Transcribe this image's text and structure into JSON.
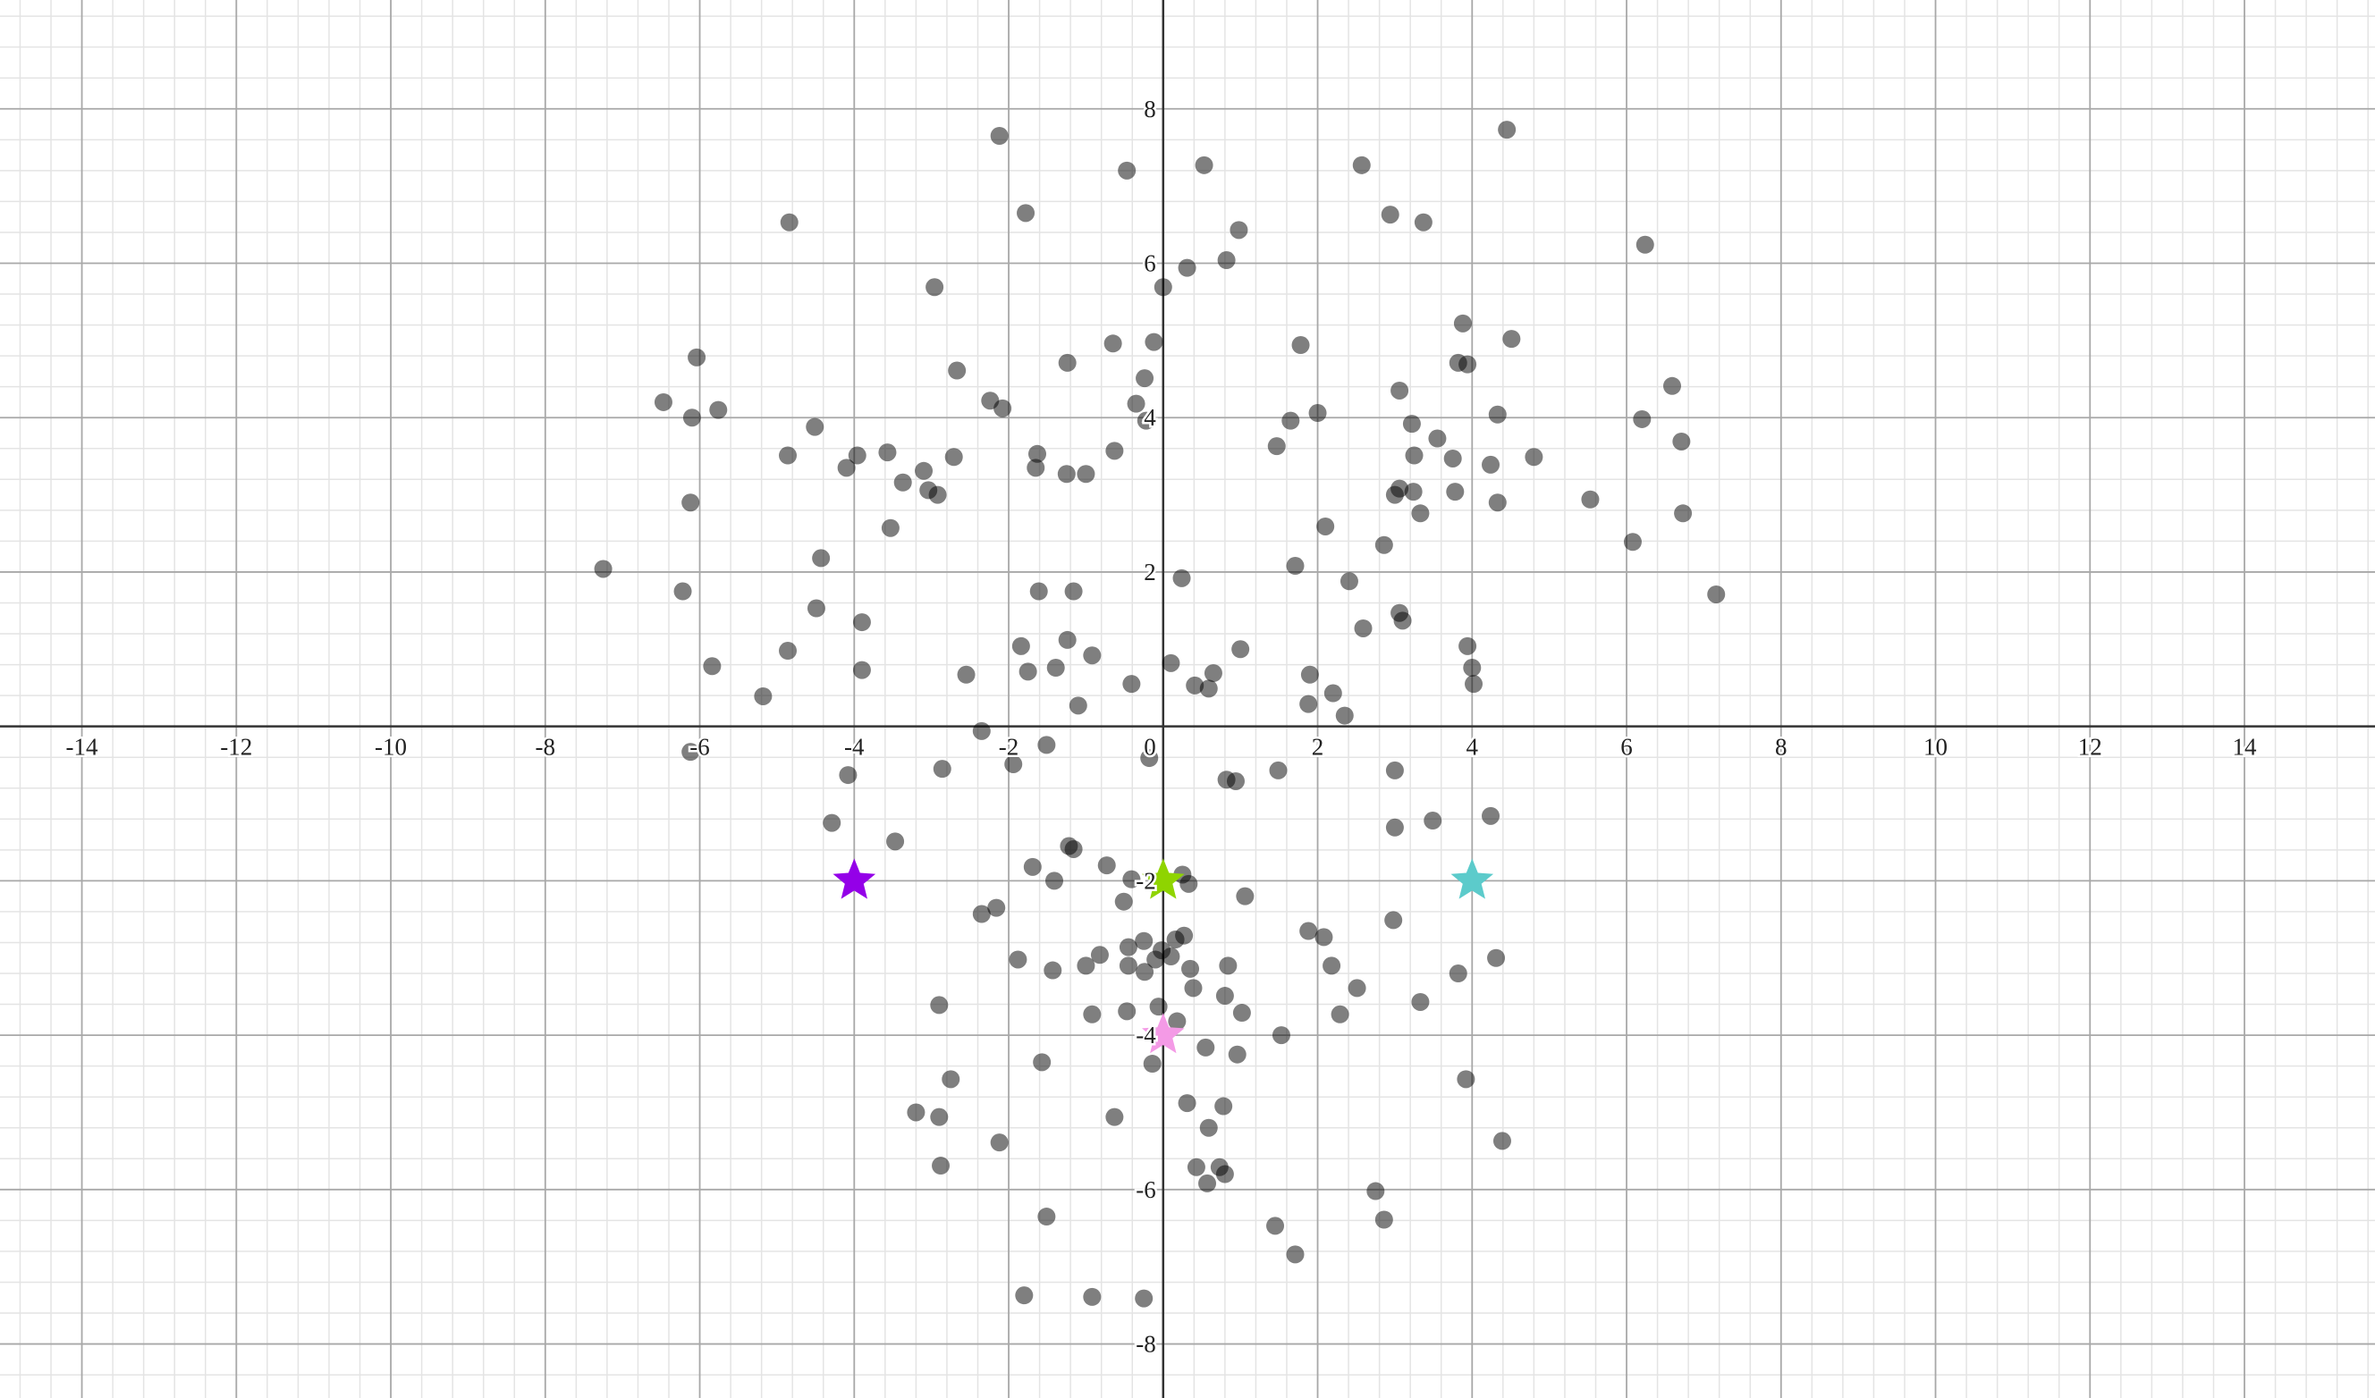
{
  "chart_data": {
    "type": "scatter",
    "xlim": [
      -15.06,
      15.69
    ],
    "ylim": [
      -8.7,
      9.41
    ],
    "xticks": [
      -14,
      -12,
      -10,
      -8,
      -6,
      -4,
      -2,
      0,
      2,
      4,
      6,
      8,
      10,
      12,
      14
    ],
    "yticks": [
      -8,
      -6,
      -4,
      -2,
      2,
      4,
      6,
      8
    ],
    "grid": true,
    "series": [
      {
        "color": "rgba(0,0,0,0.5)",
        "marker": "circle",
        "x": [
          4.45,
          -2.12,
          -0.47,
          0.53,
          2.57,
          -4.84,
          -1.78,
          2.94,
          3.37,
          0.98,
          6.24,
          0.82,
          0.31,
          -2.96,
          0,
          3.88,
          4.51,
          -0.65,
          -0.12,
          1.78,
          -6.04,
          -2.67,
          -1.24,
          3.82,
          3.94,
          -0.24,
          6.59,
          3.06,
          -6.47,
          -5.76,
          -6.1,
          -2.24,
          -2.08,
          -0.35,
          -0.22,
          2.0,
          1.65,
          3.22,
          4.33,
          6.2,
          -4.51,
          3.55,
          6.71,
          -4.86,
          -3.96,
          -3.57,
          -2.71,
          -1.63,
          -0.63,
          1.47,
          3.25,
          3.75,
          4.8,
          -4.1,
          -3.1,
          -1.65,
          -1.25,
          -1.0,
          4.24,
          -3.37,
          -3.04,
          -2.92,
          3.0,
          3.06,
          3.24,
          3.78,
          5.53,
          -6.12,
          4.33,
          3.33,
          6.73,
          -3.53,
          2.1,
          6.08,
          2.86,
          -4.43,
          -7.25,
          1.71,
          0.24,
          2.41,
          -6.22,
          -1.61,
          -1.16,
          7.16,
          -4.49,
          3.06,
          3.1,
          -3.9,
          2.59,
          -1.24,
          -1.84,
          3.94,
          1.0,
          -4.86,
          -0.92,
          0.1,
          -5.84,
          -3.9,
          -1.39,
          -1.75,
          -2.55,
          4.0,
          1.9,
          0.65,
          0.41,
          -0.41,
          0.59,
          4.02,
          2.2,
          -5.18,
          -1.1,
          1.88,
          2.35,
          -2.35,
          -6.12,
          -1.51,
          -0.18,
          -1.94,
          -2.86,
          1.49,
          3.0,
          -4.08,
          0.82,
          0.94,
          4.24,
          3.49,
          -4.29,
          3.0,
          -3.47,
          -1.22,
          -1.16,
          -0.73,
          -1.69,
          0.25,
          -0.41,
          -1.41,
          0.33,
          1.06,
          -0.51,
          -2.16,
          -2.35,
          2.98,
          1.88,
          2.08,
          0.27,
          0.16,
          -0.25,
          -0.45,
          -0.02,
          0.1,
          -0.1,
          -0.82,
          -1.88,
          -1.0,
          -0.45,
          -0.24,
          0.35,
          0.84,
          2.18,
          4.31,
          -1.43,
          3.82,
          0.39,
          2.51,
          0.8,
          3.33,
          -2.9,
          -0.06,
          -0.47,
          -0.92,
          1.02,
          2.29,
          0.18,
          1.53,
          0.55,
          0.96,
          -1.57,
          -0.14,
          -2.75,
          3.92,
          0.31,
          0.78,
          -3.2,
          -2.9,
          -0.63,
          0.59,
          -2.12,
          4.39,
          -2.88,
          0.43,
          0.73,
          0.8,
          0.57,
          2.75,
          2.86,
          -1.51,
          1.45,
          1.71,
          -1.8,
          -0.92,
          -0.25
        ],
        "values": [
          7.73,
          7.65,
          7.2,
          7.27,
          7.27,
          6.53,
          6.65,
          6.63,
          6.53,
          6.43,
          6.24,
          6.04,
          5.94,
          5.69,
          5.69,
          5.22,
          5.02,
          4.96,
          4.98,
          4.94,
          4.78,
          4.61,
          4.71,
          4.71,
          4.69,
          4.51,
          4.41,
          4.35,
          4.2,
          4.1,
          4.0,
          4.22,
          4.12,
          4.18,
          3.96,
          4.06,
          3.96,
          3.92,
          4.04,
          3.98,
          3.88,
          3.73,
          3.69,
          3.51,
          3.51,
          3.55,
          3.49,
          3.53,
          3.57,
          3.63,
          3.51,
          3.47,
          3.49,
          3.35,
          3.31,
          3.35,
          3.27,
          3.27,
          3.39,
          3.16,
          3.06,
          3.0,
          3.0,
          3.08,
          3.04,
          3.04,
          2.94,
          2.9,
          2.9,
          2.76,
          2.76,
          2.57,
          2.59,
          2.39,
          2.35,
          2.18,
          2.04,
          2.08,
          1.92,
          1.88,
          1.75,
          1.75,
          1.75,
          1.71,
          1.53,
          1.47,
          1.37,
          1.35,
          1.27,
          1.12,
          1.04,
          1.04,
          1.0,
          0.98,
          0.92,
          0.82,
          0.78,
          0.73,
          0.76,
          0.71,
          0.67,
          0.76,
          0.67,
          0.69,
          0.53,
          0.55,
          0.49,
          0.55,
          0.43,
          0.39,
          0.27,
          0.29,
          0.14,
          -0.06,
          -0.33,
          -0.24,
          -0.41,
          -0.49,
          -0.55,
          -0.57,
          -0.57,
          -0.63,
          -0.69,
          -0.71,
          -1.16,
          -1.22,
          -1.25,
          -1.31,
          -1.49,
          -1.55,
          -1.59,
          -1.8,
          -1.82,
          -1.92,
          -1.98,
          -2.0,
          -2.04,
          -2.2,
          -2.27,
          -2.35,
          -2.43,
          -2.51,
          -2.65,
          -2.73,
          -2.71,
          -2.76,
          -2.78,
          -2.86,
          -2.9,
          -2.98,
          -3.02,
          -2.96,
          -3.02,
          -3.1,
          -3.1,
          -3.18,
          -3.14,
          -3.1,
          -3.1,
          -3.0,
          -3.16,
          -3.2,
          -3.39,
          -3.39,
          -3.49,
          -3.57,
          -3.61,
          -3.63,
          -3.69,
          -3.73,
          -3.71,
          -3.73,
          -3.82,
          -4.0,
          -4.16,
          -4.25,
          -4.35,
          -4.37,
          -4.57,
          -4.57,
          -4.88,
          -4.92,
          -5.0,
          -5.06,
          -5.06,
          -5.2,
          -5.39,
          -5.37,
          -5.69,
          -5.71,
          -5.71,
          -5.8,
          -5.92,
          -6.02,
          -6.39,
          -6.35,
          -6.47,
          -6.84,
          -7.37,
          -7.39,
          -7.41
        ]
      },
      {
        "marker": "star",
        "colors": [
          "#9400e8",
          "#8fd400",
          "#5ccbcb",
          "#f49ae6"
        ],
        "x": [
          -4,
          0,
          4,
          0
        ],
        "values": [
          -2,
          -2,
          -2,
          -4
        ]
      }
    ]
  }
}
